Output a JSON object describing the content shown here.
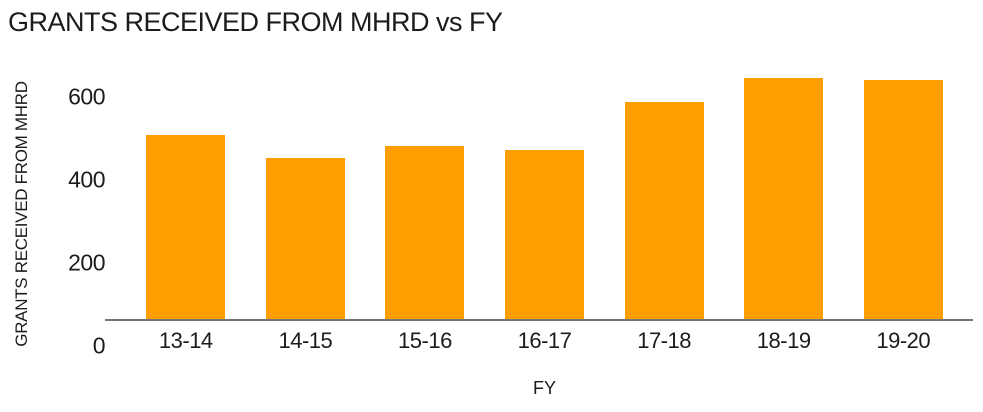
{
  "title": "GRANTS RECEIVED FROM MHRD vs FY",
  "colors": {
    "bar": "#FF9E00",
    "axis_line": "#757575",
    "text": "#1c1c1c",
    "background": "#ffffff"
  },
  "chart_data": {
    "type": "bar",
    "title": "GRANTS RECEIVED FROM MHRD vs FY",
    "xlabel": "FY",
    "ylabel": "GRANTS RECEIVED FROM MHRD",
    "categories": [
      "13-14",
      "14-15",
      "15-16",
      "16-17",
      "17-18",
      "18-19",
      "19-20"
    ],
    "values": [
      443,
      389,
      418,
      408,
      524,
      581,
      577
    ],
    "yticks": [
      0,
      200,
      400,
      600
    ],
    "ylim": [
      0,
      600
    ],
    "grid": false,
    "legend": false,
    "bar_color": "#FF9E00"
  }
}
